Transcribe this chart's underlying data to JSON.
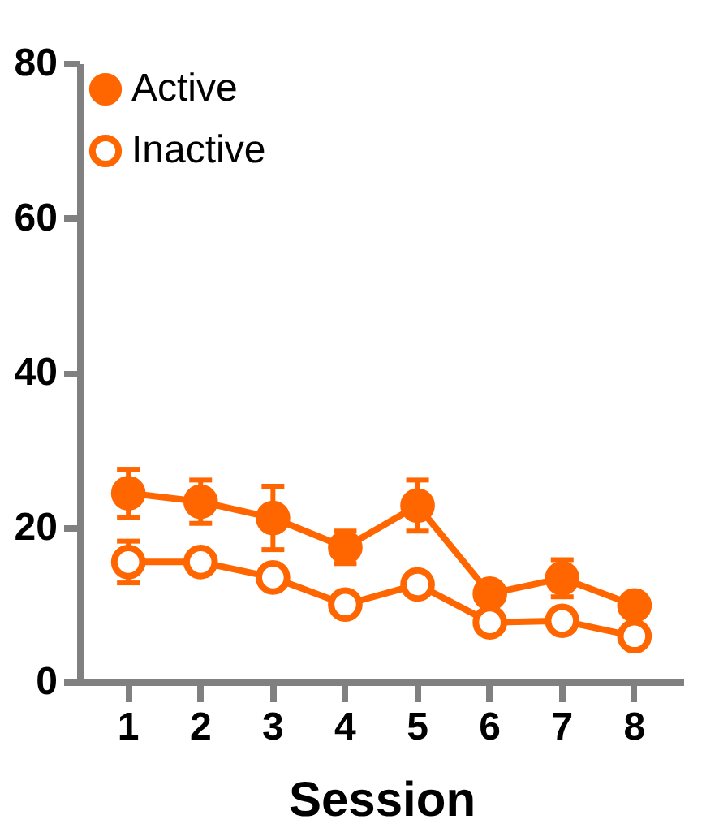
{
  "chart_data": {
    "type": "line",
    "xlabel": "Session",
    "categories": [
      "1",
      "2",
      "3",
      "4",
      "5",
      "6",
      "7",
      "8"
    ],
    "series": [
      {
        "name": "Active",
        "color": "#ff6600",
        "values": [
          24.4,
          23.3,
          21.2,
          17.4,
          22.8,
          11.4,
          13.4,
          9.9
        ],
        "errors": [
          3.1,
          2.8,
          4.1,
          2.1,
          3.3,
          1,
          2.4,
          0.8
        ]
      },
      {
        "name": "Inactive",
        "color": "#ff6600",
        "values": [
          15.5,
          15.5,
          13.5,
          10.0,
          12.6,
          7.7,
          7.9,
          5.9
        ],
        "errors": [
          2.7,
          null,
          null,
          null,
          null,
          null,
          null,
          null
        ]
      }
    ],
    "ylim": [
      0,
      80
    ],
    "yticks": [
      0,
      20,
      40,
      60,
      80
    ],
    "grid": false,
    "legend": "top left",
    "marker": "circle",
    "line_style": "solid"
  }
}
